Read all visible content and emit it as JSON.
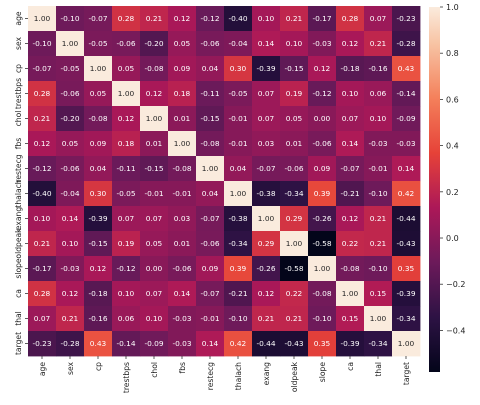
{
  "chart_data": {
    "type": "heatmap",
    "title": "",
    "xlabel": "",
    "ylabel": "",
    "variables": [
      "age",
      "sex",
      "cp",
      "trestbps",
      "chol",
      "fbs",
      "restecg",
      "thalach",
      "exang",
      "oldpeak",
      "slope",
      "ca",
      "thal",
      "target"
    ],
    "values": [
      [
        1.0,
        -0.1,
        -0.07,
        0.28,
        0.21,
        0.12,
        -0.12,
        -0.4,
        0.1,
        0.21,
        -0.17,
        0.28,
        0.07,
        -0.23
      ],
      [
        -0.1,
        1.0,
        -0.05,
        -0.06,
        -0.2,
        0.05,
        -0.06,
        -0.04,
        0.14,
        0.1,
        -0.03,
        0.12,
        0.21,
        -0.28
      ],
      [
        -0.07,
        -0.05,
        1.0,
        0.05,
        -0.08,
        0.09,
        0.04,
        0.3,
        -0.39,
        -0.15,
        0.12,
        -0.18,
        -0.16,
        0.43
      ],
      [
        0.28,
        -0.06,
        0.05,
        1.0,
        0.12,
        0.18,
        -0.11,
        -0.05,
        0.07,
        0.19,
        -0.12,
        0.1,
        0.06,
        -0.14
      ],
      [
        0.21,
        -0.2,
        -0.08,
        0.12,
        1.0,
        0.01,
        -0.15,
        -0.01,
        0.07,
        0.05,
        -0.0,
        0.07,
        0.1,
        -0.09
      ],
      [
        0.12,
        0.05,
        0.09,
        0.18,
        0.01,
        1.0,
        -0.08,
        -0.01,
        0.03,
        0.01,
        -0.06,
        0.14,
        -0.03,
        -0.03
      ],
      [
        -0.12,
        -0.06,
        0.04,
        -0.11,
        -0.15,
        -0.08,
        1.0,
        0.04,
        -0.07,
        -0.06,
        0.09,
        -0.07,
        -0.01,
        0.14
      ],
      [
        -0.4,
        -0.04,
        0.3,
        -0.05,
        -0.01,
        -0.01,
        0.04,
        1.0,
        -0.38,
        -0.34,
        0.39,
        -0.21,
        -0.1,
        0.42
      ],
      [
        0.1,
        0.14,
        -0.39,
        0.07,
        0.07,
        0.03,
        -0.07,
        -0.38,
        1.0,
        0.29,
        -0.26,
        0.12,
        0.21,
        -0.44
      ],
      [
        0.21,
        0.1,
        -0.15,
        0.19,
        0.05,
        0.01,
        -0.06,
        -0.34,
        0.29,
        1.0,
        -0.58,
        0.22,
        0.21,
        -0.43
      ],
      [
        -0.17,
        -0.03,
        0.12,
        -0.12,
        -0.0,
        -0.06,
        0.09,
        0.39,
        -0.26,
        -0.58,
        1.0,
        -0.08,
        -0.1,
        0.35
      ],
      [
        0.28,
        0.12,
        -0.18,
        0.1,
        0.07,
        0.14,
        -0.07,
        -0.21,
        0.12,
        0.22,
        -0.08,
        1.0,
        0.15,
        -0.39
      ],
      [
        0.07,
        0.21,
        -0.16,
        0.06,
        0.1,
        -0.03,
        -0.01,
        -0.1,
        0.21,
        0.21,
        -0.1,
        0.15,
        1.0,
        -0.34
      ],
      [
        -0.23,
        -0.28,
        0.43,
        -0.14,
        -0.09,
        -0.03,
        0.14,
        0.42,
        -0.44,
        -0.43,
        0.35,
        -0.39,
        -0.34,
        1.0
      ]
    ],
    "value_range": [
      -0.58,
      1.0
    ],
    "colormap": "rocket",
    "colorbar_ticks": [
      1.0,
      0.8,
      0.6,
      0.4,
      0.2,
      0.0,
      -0.2,
      -0.4
    ],
    "colorbar_tick_labels": [
      "1.0",
      "0.8",
      "0.6",
      "0.4",
      "0.2",
      "0.0",
      "−0.2",
      "−0.4"
    ],
    "annotations": true,
    "grid": false,
    "legend_placement": "right"
  }
}
